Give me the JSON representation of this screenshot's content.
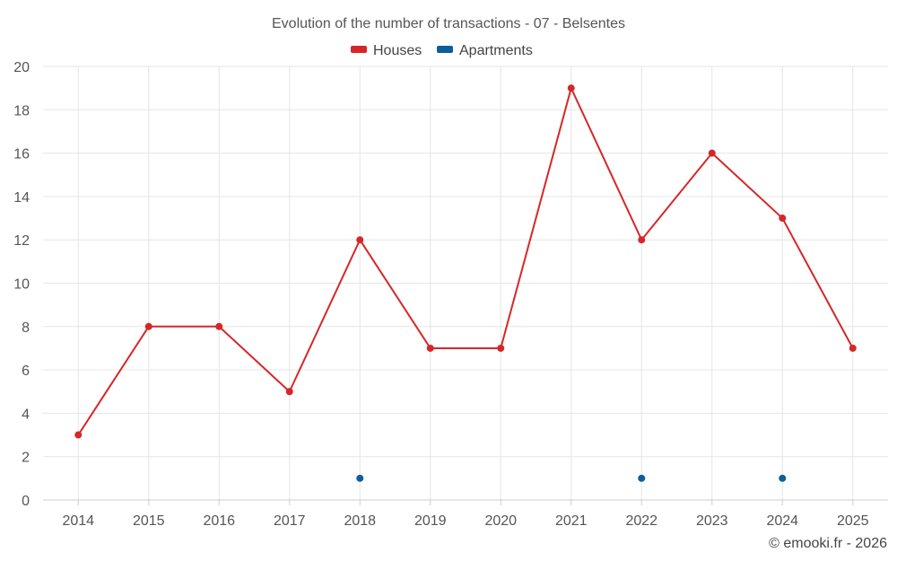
{
  "chart_data": {
    "type": "line",
    "title": "Evolution of the number of transactions - 07 - Belsentes",
    "categories": [
      "2014",
      "2015",
      "2016",
      "2017",
      "2018",
      "2019",
      "2020",
      "2021",
      "2022",
      "2023",
      "2024",
      "2025"
    ],
    "ylim": [
      0,
      20
    ],
    "yticks": [
      0,
      2,
      4,
      6,
      8,
      10,
      12,
      14,
      16,
      18,
      20
    ],
    "xlabel": "",
    "ylabel": "",
    "grid": true,
    "legend_position": "top-center",
    "series": [
      {
        "name": "Houses",
        "color": "#d62728",
        "style": "line+markers",
        "values": [
          3,
          8,
          8,
          5,
          12,
          7,
          7,
          19,
          12,
          16,
          13,
          7
        ]
      },
      {
        "name": "Apartments",
        "color": "#0b5f9c",
        "style": "markers",
        "values": [
          null,
          null,
          null,
          null,
          1,
          null,
          null,
          null,
          1,
          null,
          1,
          null
        ]
      }
    ],
    "credit": "© emooki.fr - 2026"
  }
}
